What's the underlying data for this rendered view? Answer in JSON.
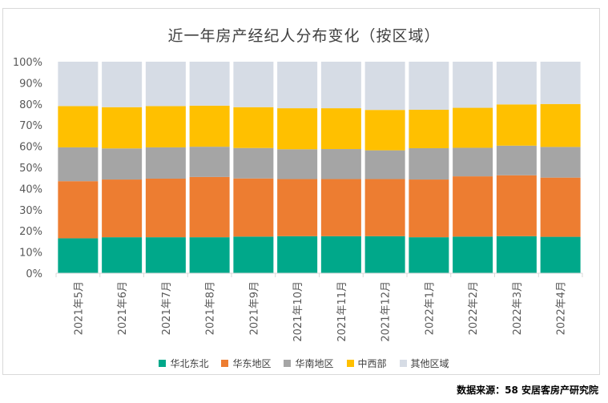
{
  "chart_data": {
    "type": "bar",
    "stacked": true,
    "title": "近一年房产经纪人分布变化（按区域）",
    "categories": [
      "2021年5月",
      "2021年6月",
      "2021年7月",
      "2021年8月",
      "2021年9月",
      "2021年10月",
      "2021年11月",
      "2021年12月",
      "2022年1月",
      "2022年2月",
      "2022年3月",
      "2022年4月"
    ],
    "series": [
      {
        "name": "华北东北",
        "color": "#00a88a",
        "values": [
          16.5,
          17,
          17,
          17,
          17.3,
          17.5,
          17.5,
          17.5,
          17,
          17.3,
          17.5,
          17.2
        ]
      },
      {
        "name": "华东地区",
        "color": "#ed7d31",
        "values": [
          27,
          27.3,
          27.7,
          28.5,
          27.5,
          27,
          27,
          27,
          27.3,
          28.5,
          28.8,
          28
        ]
      },
      {
        "name": "华南地区",
        "color": "#a5a5a5",
        "values": [
          16,
          14.7,
          14.8,
          14.3,
          14.4,
          14.1,
          14.2,
          13.6,
          14.8,
          13.5,
          14.0,
          14.5
        ]
      },
      {
        "name": "中西部",
        "color": "#ffc000",
        "values": [
          19.5,
          19.5,
          19.5,
          19.4,
          19.3,
          19.4,
          19.3,
          19.1,
          18.2,
          18.9,
          19.5,
          20.3
        ]
      },
      {
        "name": "其他区域",
        "color": "#d6dce5",
        "values": [
          21,
          21.5,
          21,
          20.8,
          21.5,
          22,
          22,
          22.8,
          22.7,
          21.8,
          20.2,
          20
        ]
      }
    ],
    "ylim": [
      0,
      100
    ],
    "yticks": [
      "0%",
      "10%",
      "20%",
      "30%",
      "40%",
      "50%",
      "60%",
      "70%",
      "80%",
      "90%",
      "100%"
    ],
    "xlabel": "",
    "ylabel": "",
    "legend": "bottom"
  },
  "source": "数据来源：58 安居客房产研究院"
}
